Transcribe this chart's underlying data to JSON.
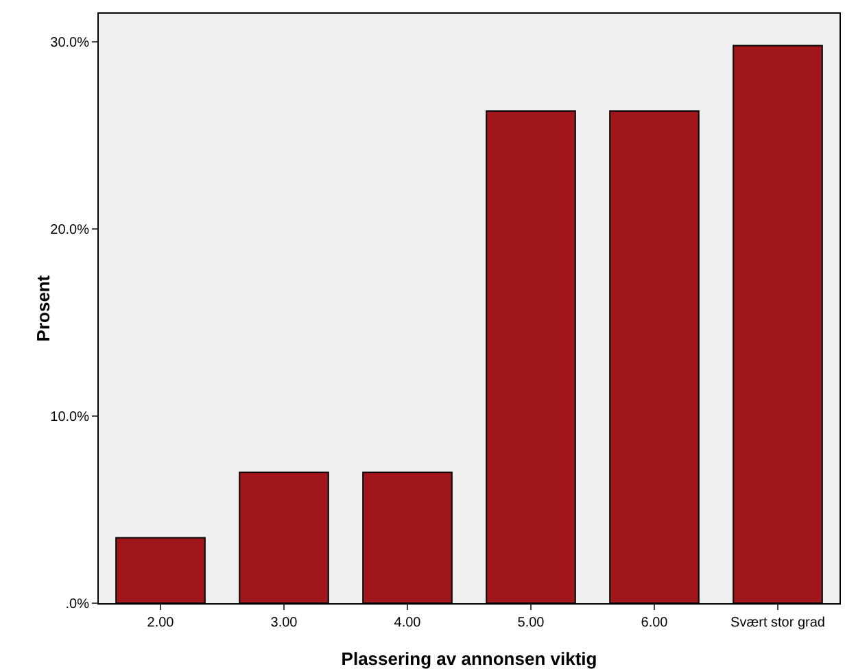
{
  "chart_data": {
    "type": "bar",
    "xlabel": "Plassering av annonsen viktig",
    "ylabel": "Prosent",
    "categories": [
      "2.00",
      "3.00",
      "4.00",
      "5.00",
      "6.00",
      "Svært stor grad"
    ],
    "values": [
      3.5,
      7.0,
      7.0,
      26.3,
      26.3,
      29.8
    ],
    "color": "#a0161a",
    "ylim": [
      0,
      31.5
    ],
    "yticks": [
      {
        "value": 0,
        "label": ".0%"
      },
      {
        "value": 10,
        "label": "10.0%"
      },
      {
        "value": 20,
        "label": "20.0%"
      },
      {
        "value": 30,
        "label": "30.0%"
      }
    ],
    "grid": false
  }
}
